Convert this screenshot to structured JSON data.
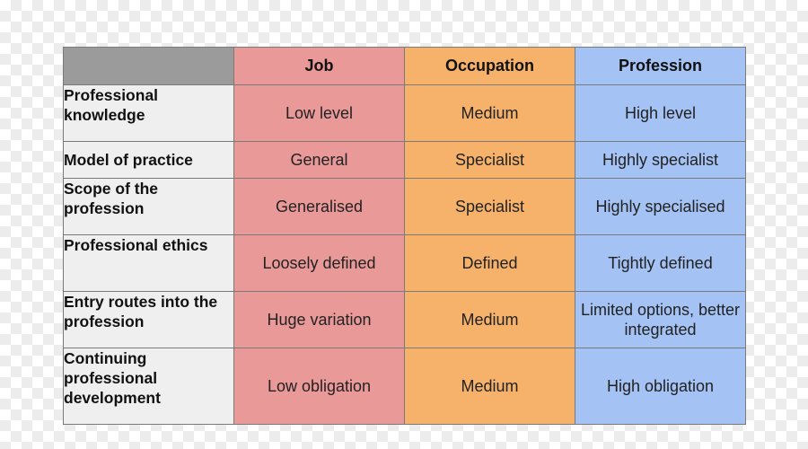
{
  "table": {
    "headers": [
      "",
      "Job",
      "Occupation",
      "Profession"
    ],
    "rows": [
      {
        "label": "Professional knowledge",
        "job": "Low level",
        "occupation": "Medium",
        "profession": "High level"
      },
      {
        "label": "Model of practice",
        "job": "General",
        "occupation": "Specialist",
        "profession": "Highly specialist"
      },
      {
        "label": "Scope of the profession",
        "job": "Generalised",
        "occupation": "Specialist",
        "profession": "Highly specialised"
      },
      {
        "label": "Professional ethics",
        "job": "Loosely defined",
        "occupation": "Defined",
        "profession": "Tightly defined"
      },
      {
        "label": "Entry routes into the profession",
        "job": "Huge variation",
        "occupation": "Medium",
        "profession": "Limited options, better integrated"
      },
      {
        "label": "Continuing professional development",
        "job": "Low obligation",
        "occupation": "Medium",
        "profession": "High obligation"
      }
    ]
  },
  "colors": {
    "header_blank": "#9b9b9b",
    "job": "#ea9999",
    "occupation": "#f6b26b",
    "profession": "#a4c2f4",
    "row_label": "#efefef"
  }
}
